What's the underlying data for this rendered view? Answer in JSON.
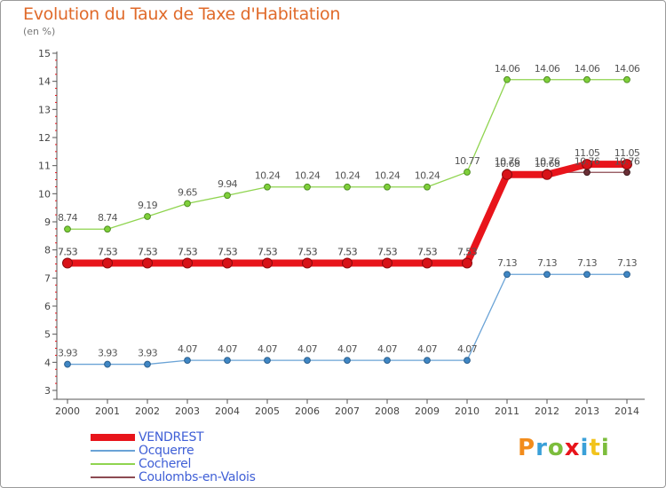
{
  "header": {
    "title": "Evolution du Taux de Taxe d'Habitation",
    "subtitle": "(en %)"
  },
  "chart_data": {
    "type": "line",
    "x": [
      "2000",
      "2001",
      "2002",
      "2003",
      "2004",
      "2005",
      "2006",
      "2007",
      "2008",
      "2009",
      "2010",
      "2011",
      "2012",
      "2013",
      "2014"
    ],
    "ylim": [
      3,
      15
    ],
    "yticks": [
      "3",
      "4",
      "5",
      "6",
      "7",
      "8",
      "9",
      "10",
      "11",
      "12",
      "13",
      "14",
      "15"
    ],
    "grid": false,
    "legend_position": "bottom-left",
    "series": [
      {
        "name": "VENDREST",
        "color": "#e8141b",
        "values": [
          7.53,
          7.53,
          7.53,
          7.53,
          7.53,
          7.53,
          7.53,
          7.53,
          7.53,
          7.53,
          7.53,
          10.68,
          10.68,
          11.05,
          11.05
        ],
        "labels": [
          "7.53",
          "7.53",
          "7.53",
          "7.53",
          "7.53",
          "7.53",
          "7.53",
          "7.53",
          "7.53",
          "7.53",
          "7.53",
          "10.68",
          "10.68",
          "11.05",
          "11.05"
        ]
      },
      {
        "name": "Ocquerre",
        "color": "#6aa3d6",
        "values": [
          3.93,
          3.93,
          3.93,
          4.07,
          4.07,
          4.07,
          4.07,
          4.07,
          4.07,
          4.07,
          4.07,
          7.13,
          7.13,
          7.13,
          7.13
        ],
        "labels": [
          "3.93",
          "3.93",
          "3.93",
          "4.07",
          "4.07",
          "4.07",
          "4.07",
          "4.07",
          "4.07",
          "4.07",
          "4.07",
          "7.13",
          "7.13",
          "7.13",
          "7.13"
        ]
      },
      {
        "name": "Cocherel",
        "color": "#8fd44f",
        "values": [
          8.74,
          8.74,
          9.19,
          9.65,
          9.94,
          10.24,
          10.24,
          10.24,
          10.24,
          10.24,
          10.77,
          14.06,
          14.06,
          14.06,
          14.06
        ],
        "labels": [
          "8.74",
          "8.74",
          "9.19",
          "9.65",
          "9.94",
          "10.24",
          "10.24",
          "10.24",
          "10.24",
          "10.24",
          "10.77",
          "14.06",
          "14.06",
          "14.06",
          "14.06"
        ]
      },
      {
        "name": "Coulombs-en-Valois",
        "color": "#8c4a52",
        "values": [
          7.53,
          7.53,
          7.53,
          7.53,
          7.53,
          7.53,
          7.53,
          7.53,
          7.53,
          7.53,
          7.53,
          10.76,
          10.76,
          10.76,
          10.76
        ],
        "labels": [
          "7.53",
          "7.53",
          "7.53",
          "7.53",
          "7.53",
          "7.53",
          "7.53",
          "7.53",
          "7.53",
          "7.53",
          "7.53",
          "10.76",
          "10.76",
          "10.76",
          "10.76"
        ]
      }
    ]
  },
  "legend": {
    "items": [
      {
        "label": "VENDREST",
        "color": "#e8141b"
      },
      {
        "label": "Ocquerre",
        "color": "#6aa3d6"
      },
      {
        "label": "Cocherel",
        "color": "#8fd44f"
      },
      {
        "label": "Coulombs-en-Valois",
        "color": "#8c4a52"
      }
    ]
  },
  "logo": {
    "text": "Proxiti",
    "letter_colors": [
      "#f28c1c",
      "#3aa0d8",
      "#7cbd3c",
      "#e8141b",
      "#3aa0d8",
      "#f2c31c",
      "#7cbd3c"
    ]
  }
}
